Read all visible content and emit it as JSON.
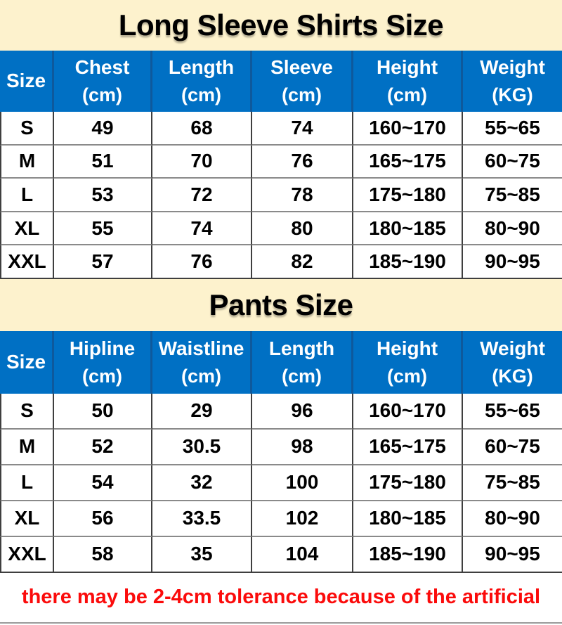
{
  "colors": {
    "header_blue": "#0070c4",
    "header_divider_blue": "#0e599c",
    "title_band_cream": "#fdf2cd",
    "note_red": "#fb0b0b",
    "cell_border_dark": "#3f3f3f",
    "cell_border_gray": "#8a8a8a"
  },
  "chart_data": [
    {
      "type": "table",
      "title": "Long Sleeve Shirts Size",
      "columns": [
        {
          "label": "Size",
          "unit": ""
        },
        {
          "label": "Chest",
          "unit": "(cm)"
        },
        {
          "label": "Length",
          "unit": "(cm)"
        },
        {
          "label": "Sleeve",
          "unit": "(cm)"
        },
        {
          "label": "Height",
          "unit": "(cm)"
        },
        {
          "label": "Weight",
          "unit": "(KG)"
        }
      ],
      "rows": [
        [
          "S",
          "49",
          "68",
          "74",
          "160~170",
          "55~65"
        ],
        [
          "M",
          "51",
          "70",
          "76",
          "165~175",
          "60~75"
        ],
        [
          "L",
          "53",
          "72",
          "78",
          "175~180",
          "75~85"
        ],
        [
          "XL",
          "55",
          "74",
          "80",
          "180~185",
          "80~90"
        ],
        [
          "XXL",
          "57",
          "76",
          "82",
          "185~190",
          "90~95"
        ]
      ]
    },
    {
      "type": "table",
      "title": "Pants Size",
      "columns": [
        {
          "label": "Size",
          "unit": ""
        },
        {
          "label": "Hipline",
          "unit": "(cm)"
        },
        {
          "label": "Waistline",
          "unit": "(cm)"
        },
        {
          "label": "Length",
          "unit": "(cm)"
        },
        {
          "label": "Height",
          "unit": "(cm)"
        },
        {
          "label": "Weight",
          "unit": "(KG)"
        }
      ],
      "rows": [
        [
          "S",
          "50",
          "29",
          "96",
          "160~170",
          "55~65"
        ],
        [
          "M",
          "52",
          "30.5",
          "98",
          "165~175",
          "60~75"
        ],
        [
          "L",
          "54",
          "32",
          "100",
          "175~180",
          "75~85"
        ],
        [
          "XL",
          "56",
          "33.5",
          "102",
          "180~185",
          "80~90"
        ],
        [
          "XXL",
          "58",
          "35",
          "104",
          "185~190",
          "90~95"
        ]
      ]
    }
  ],
  "footer": {
    "note": "there may be 2-4cm tolerance because of the artificial"
  }
}
